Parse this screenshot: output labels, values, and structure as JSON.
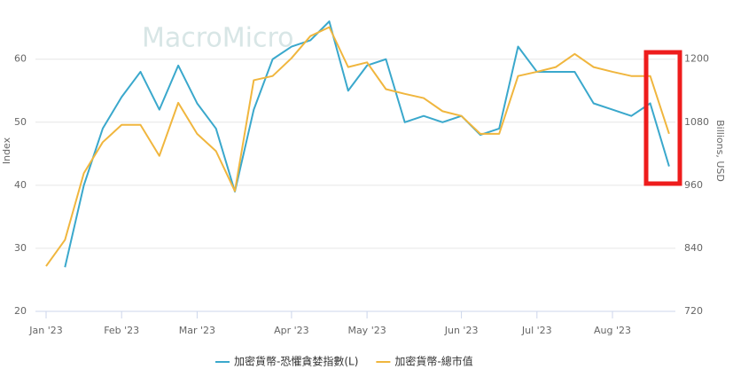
{
  "chart_data": {
    "type": "line",
    "watermark": "MacroMicro",
    "categories": [
      "Jan '23",
      null,
      null,
      null,
      "Feb '23",
      null,
      null,
      null,
      "Mar '23",
      null,
      null,
      null,
      null,
      "Apr '23",
      null,
      null,
      null,
      "May '23",
      null,
      null,
      null,
      null,
      "Jun '23",
      null,
      null,
      null,
      "Jul '23",
      null,
      null,
      null,
      "Aug '23",
      null,
      null,
      null
    ],
    "series": [
      {
        "name": "加密貨幣-恐懼貪婪指數(L)",
        "color": "#3aa8cc",
        "values": [
          null,
          27,
          40,
          49,
          54,
          58,
          52,
          59,
          53,
          49,
          39,
          52,
          60,
          62,
          63,
          66,
          55,
          59,
          60,
          50,
          51,
          50,
          51,
          48,
          49,
          62,
          58,
          58,
          58,
          53,
          52,
          51,
          53,
          43
        ]
      },
      {
        "name": "加密貨幣-總市值",
        "color": "#f0b63e",
        "axis": "y2",
        "values": [
          806,
          856,
          983,
          1042,
          1075,
          1075,
          1016,
          1117,
          1058,
          1025,
          949,
          1160,
          1168,
          1202,
          1244,
          1261,
          1185,
          1194,
          1143,
          1134,
          1126,
          1101,
          1092,
          1058,
          1058,
          1168,
          1176,
          1185,
          1210,
          1185,
          1176,
          1168,
          1168,
          1058
        ]
      }
    ],
    "ylim": [
      20,
      67
    ],
    "yticks": [
      20,
      30,
      40,
      50,
      60
    ],
    "ylabel": "Index",
    "y2lim": [
      720,
      1284
    ],
    "y2ticks": [
      720,
      840,
      960,
      1080,
      1200
    ],
    "y2label": "Billions, USD",
    "grid": true
  }
}
